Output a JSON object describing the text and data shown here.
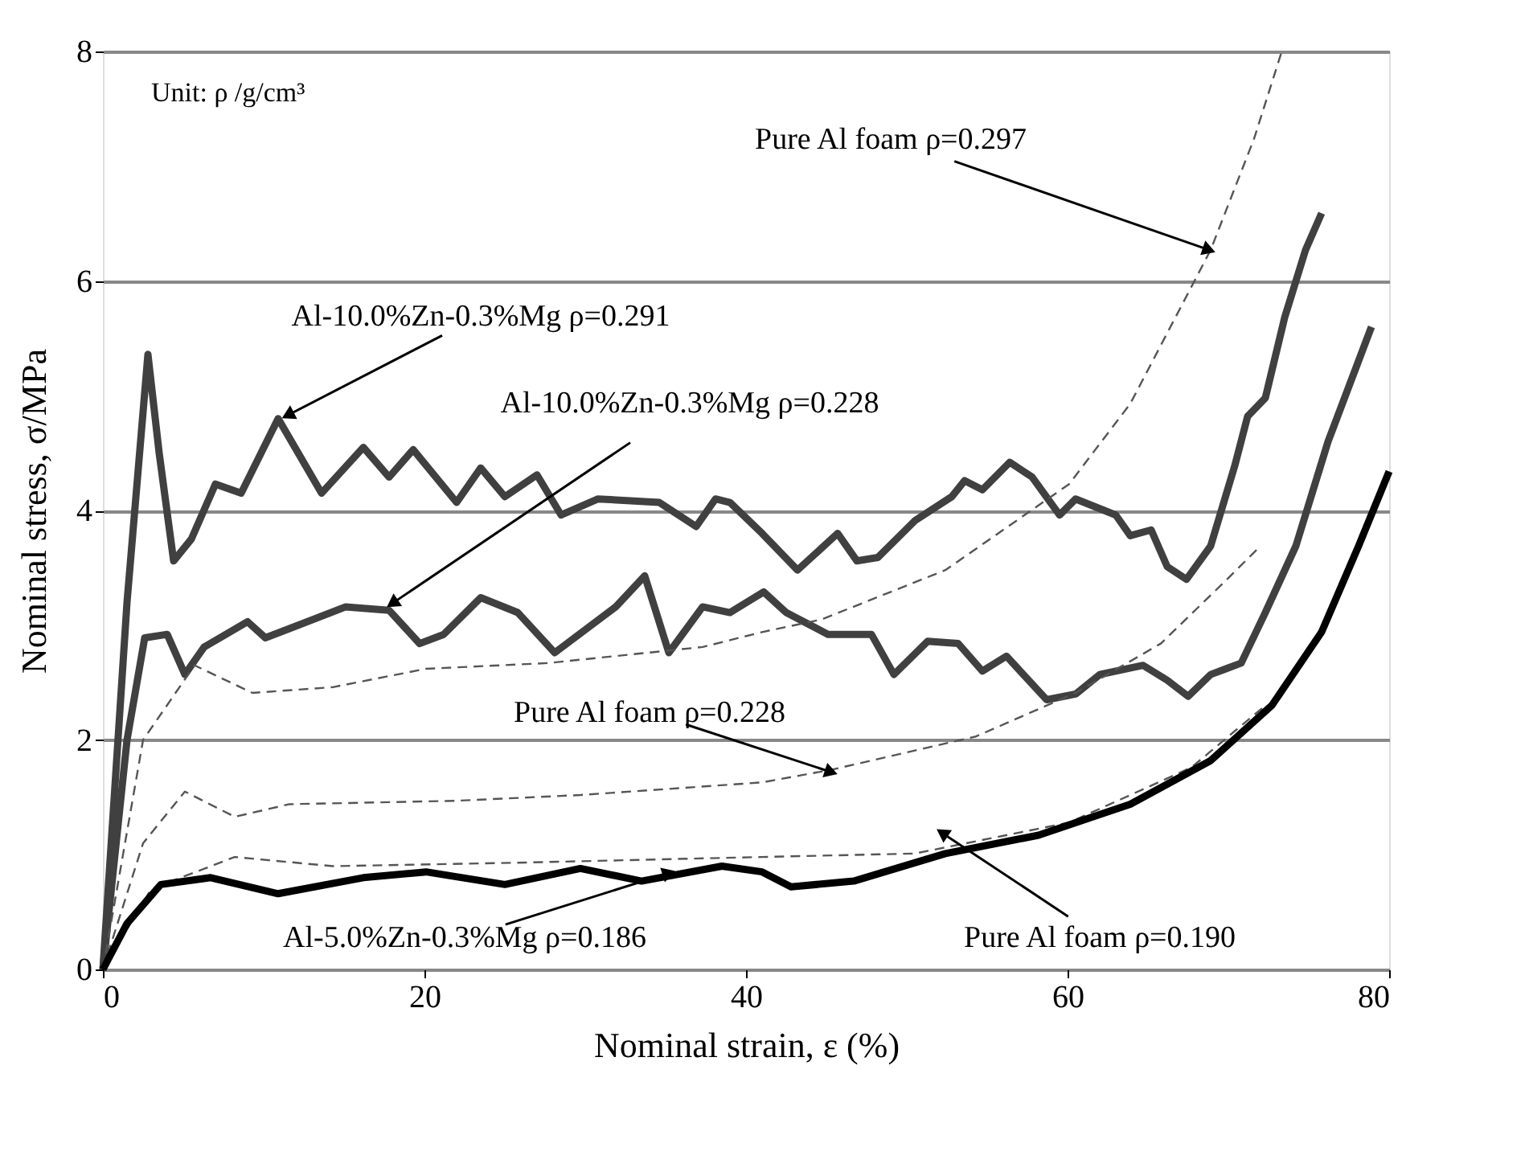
{
  "chart_data": {
    "type": "line",
    "xlabel": "Nominal strain, ε (%)",
    "ylabel": "Nominal stress, σ/MPa",
    "xlim": [
      0,
      80
    ],
    "xticks": [
      0,
      20,
      40,
      60,
      80
    ],
    "ylim": [
      0,
      8
    ],
    "yticks": [
      0,
      2,
      4,
      6,
      8
    ],
    "grid": "y",
    "marker": "none",
    "series": [
      {
        "color": "#404040",
        "line_style": "solid",
        "x": [
          0,
          1.5,
          2.8,
          3.5,
          4.4,
          5.5,
          7.0,
          8.6,
          10.9,
          13.6,
          16.2,
          17.8,
          19.3,
          22,
          23.5,
          25,
          27,
          28.5,
          30.8,
          34.6,
          36.9,
          38.1,
          39,
          41,
          43.2,
          45.7,
          46.9,
          48.2,
          50.5,
          52.8,
          53.6,
          54.7,
          56.4,
          57.8,
          59.5,
          60.5,
          63,
          63.9,
          65.2,
          66.2,
          67.4,
          68.9,
          70.4,
          71.2,
          72.3,
          73.5,
          74.8,
          75.8
        ],
        "values": [
          0,
          3.2,
          5.36,
          4.5,
          3.56,
          3.75,
          4.23,
          4.15,
          4.8,
          4.15,
          4.55,
          4.29,
          4.53,
          4.07,
          4.37,
          4.12,
          4.31,
          3.96,
          4.1,
          4.07,
          3.86,
          4.1,
          4.07,
          3.8,
          3.48,
          3.8,
          3.56,
          3.59,
          3.91,
          4.12,
          4.26,
          4.18,
          4.42,
          4.29,
          3.96,
          4.1,
          3.96,
          3.78,
          3.83,
          3.51,
          3.4,
          3.69,
          4.39,
          4.82,
          4.98,
          5.68,
          6.27,
          6.59
        ]
      },
      {
        "color": "#404040",
        "line_style": "solid",
        "x": [
          0,
          1.5,
          2.6,
          4,
          5.1,
          6.3,
          9,
          10.1,
          11.6,
          15.1,
          17.8,
          19.7,
          21.2,
          23.5,
          25.8,
          28.1,
          31.9,
          33.7,
          35.2,
          37.3,
          39,
          41.1,
          42.5,
          45.1,
          47.8,
          49.2,
          51.3,
          53.2,
          54.7,
          56.2,
          58.7,
          60.5,
          62,
          64.7,
          66.2,
          67.5,
          68.9,
          70.8,
          72.3,
          74.2,
          76.2,
          78.9
        ],
        "values": [
          0,
          2.0,
          2.89,
          2.92,
          2.57,
          2.81,
          3.03,
          2.89,
          2.97,
          3.16,
          3.13,
          2.84,
          2.92,
          3.24,
          3.11,
          2.76,
          3.16,
          3.43,
          2.76,
          3.16,
          3.11,
          3.29,
          3.11,
          2.92,
          2.92,
          2.57,
          2.86,
          2.84,
          2.6,
          2.73,
          2.35,
          2.4,
          2.57,
          2.65,
          2.52,
          2.38,
          2.57,
          2.67,
          3.11,
          3.69,
          4.6,
          5.6
        ]
      },
      {
        "color": "#555555",
        "line_style": "dashed",
        "x": [
          0,
          2.5,
          5.7,
          9.3,
          14.3,
          20.1,
          27.7,
          37.3,
          41,
          44.7,
          52.4,
          60.1,
          63.9,
          68.9,
          71.6,
          73.3
        ],
        "values": [
          0,
          2.0,
          2.65,
          2.41,
          2.46,
          2.62,
          2.67,
          2.81,
          2.94,
          3.05,
          3.48,
          4.23,
          4.93,
          6.27,
          7.24,
          7.99
        ]
      },
      {
        "color": "#555555",
        "line_style": "dashed",
        "x": [
          0,
          2.5,
          5.1,
          8.2,
          11.6,
          22,
          29.7,
          41,
          45.3,
          54.3,
          60.5,
          65.8,
          69.7,
          72
        ],
        "values": [
          0,
          1.1,
          1.55,
          1.33,
          1.44,
          1.47,
          1.52,
          1.63,
          1.74,
          2.03,
          2.41,
          2.84,
          3.37,
          3.69
        ]
      },
      {
        "color": "#555555",
        "line_style": "dashed",
        "x": [
          0,
          3,
          8.2,
          14.3,
          25.8,
          41,
          50.5,
          60.1,
          67.7,
          72.3
        ],
        "values": [
          0,
          0.7,
          0.98,
          0.9,
          0.93,
          0.98,
          1.01,
          1.28,
          1.76,
          2.3
        ]
      },
      {
        "color": "#000000",
        "line_style": "solid",
        "x": [
          0,
          1.5,
          3.6,
          6.7,
          10.9,
          16.2,
          20.1,
          25,
          29.7,
          33.5,
          38.5,
          41,
          42.8,
          46.7,
          52.4,
          58.2,
          63.9,
          68.9,
          72.7,
          75.8,
          78.1,
          80
        ],
        "values": [
          0,
          0.4,
          0.74,
          0.8,
          0.66,
          0.8,
          0.85,
          0.74,
          0.88,
          0.77,
          0.9,
          0.85,
          0.72,
          0.77,
          1.01,
          1.17,
          1.44,
          1.82,
          2.3,
          2.94,
          3.69,
          4.34
        ]
      }
    ],
    "annotations": [
      "Unit: ρ /g/cm³",
      {
        "text": "Pure Al foam ρ=0.297",
        "x": 68.8,
        "y": 6.27
      },
      {
        "text": "Al-10.0%Zn-0.3%Mg ρ=0.291",
        "x": 11.5,
        "y": 4.83
      },
      {
        "text": "Al-10.0%Zn-0.3%Mg ρ=0.228",
        "x": 18,
        "y": 3.19
      },
      {
        "text": "Pure Al foam ρ=0.228",
        "x": 45.3,
        "y": 1.72
      },
      {
        "text": "Al-5.0%Zn-0.3%Mg ρ=0.186",
        "x": 35.2,
        "y": 0.84
      },
      {
        "text": "Pure Al foam ρ=0.190",
        "x": 52.2,
        "y": 1.19
      }
    ]
  }
}
